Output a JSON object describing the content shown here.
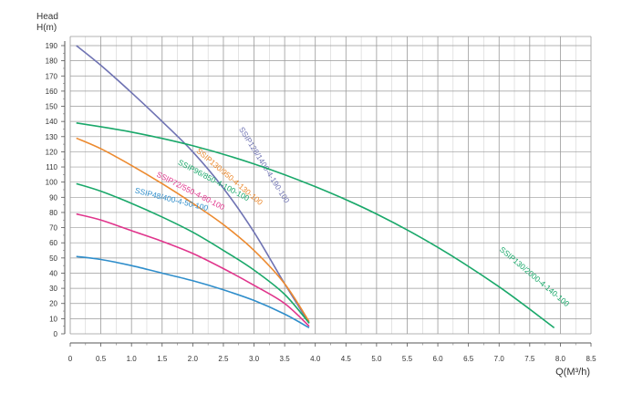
{
  "chart_data": {
    "type": "line",
    "ylabel_line1": "Head",
    "ylabel_line2": "H(m)",
    "xlabel": "Q(M³/h)",
    "xlim": [
      0,
      8.5
    ],
    "ylim": [
      0,
      190
    ],
    "x_ticks": [
      "0",
      "0.5",
      "1.0",
      "1.5",
      "2.0",
      "2.5",
      "3.0",
      "3.5",
      "4.0",
      "4.5",
      "5.0",
      "5.5",
      "6.0",
      "6.5",
      "7.0",
      "7.5",
      "8.0",
      "8.5"
    ],
    "y_ticks": [
      "0",
      "10",
      "20",
      "30",
      "40",
      "50",
      "60",
      "70",
      "80",
      "90",
      "100",
      "110",
      "120",
      "130",
      "140",
      "150",
      "160",
      "170",
      "180",
      "190"
    ],
    "grid": true,
    "series": [
      {
        "name": "SSIP128/1400-4-190-100",
        "color": "#6f73b3",
        "label_pos": [
          2.75,
          135
        ],
        "label_angle": 58,
        "x": [
          0.1,
          0.5,
          1.0,
          1.5,
          2.0,
          2.5,
          3.0,
          3.5,
          3.9
        ],
        "y": [
          190,
          177,
          159,
          140,
          120,
          96,
          67,
          33,
          7
        ]
      },
      {
        "name": "SSIP130/2000-4-140-100",
        "color": "#1aa86a",
        "label_pos": [
          7.0,
          55
        ],
        "label_angle": 40,
        "x": [
          0.1,
          1.0,
          2.0,
          3.0,
          4.0,
          5.0,
          6.0,
          7.0,
          7.9
        ],
        "y": [
          139,
          133,
          124,
          112,
          97,
          79,
          57,
          31,
          4
        ]
      },
      {
        "name": "SSIP130/950-4-130-100",
        "color": "#ec8a2f",
        "label_pos": [
          2.05,
          120
        ],
        "label_angle": 40,
        "x": [
          0.1,
          0.5,
          1.0,
          1.5,
          2.0,
          2.5,
          3.0,
          3.5,
          3.9
        ],
        "y": [
          129,
          122,
          111,
          99,
          86,
          72,
          55,
          33,
          8
        ]
      },
      {
        "name": "SSIP96/850-4-100-100",
        "color": "#1aa86a",
        "label_pos": [
          1.75,
          112
        ],
        "label_angle": 28,
        "x": [
          0.1,
          0.5,
          1.0,
          1.5,
          2.0,
          2.5,
          3.0,
          3.5,
          3.9
        ],
        "y": [
          99,
          94,
          86,
          77,
          67,
          55,
          42,
          26,
          7
        ]
      },
      {
        "name": "SSIP72/550-4-80-100",
        "color": "#e0358c",
        "label_pos": [
          1.4,
          104
        ],
        "label_angle": 27,
        "x": [
          0.1,
          0.5,
          1.0,
          1.5,
          2.0,
          2.5,
          3.0,
          3.5,
          3.9
        ],
        "y": [
          79,
          75,
          68,
          61,
          53,
          43,
          32,
          20,
          5
        ]
      },
      {
        "name": "SSIP48/400-4-50-100",
        "color": "#2f8ecb",
        "label_pos": [
          1.05,
          93
        ],
        "label_angle": 14,
        "x": [
          0.1,
          0.5,
          1.0,
          1.5,
          2.0,
          2.5,
          3.0,
          3.5,
          3.9
        ],
        "y": [
          51,
          49,
          45,
          40,
          35,
          29,
          22,
          13,
          4
        ]
      }
    ]
  }
}
